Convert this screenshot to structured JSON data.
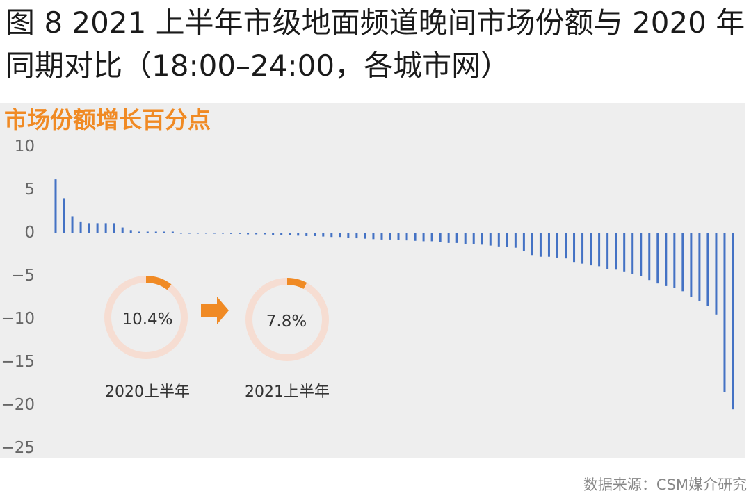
{
  "title": "图 8 2021 上半年市级地面频道晚间市场份额与 2020 年同期对比（18:00–24:00，各城市网）",
  "source": "数据来源：CSM媒介研究",
  "chart_data": {
    "type": "bar",
    "ylabel": "市场份额增长百分点",
    "ylim": [
      -25,
      10
    ],
    "yticks": [
      "10",
      "5",
      "0",
      "−5",
      "−10",
      "−15",
      "−20",
      "−25"
    ],
    "ytick_values": [
      10,
      5,
      0,
      -5,
      -10,
      -15,
      -20,
      -25
    ],
    "grid": false,
    "bar_color": "#4472c4",
    "values": [
      6.2,
      4.0,
      1.9,
      1.3,
      1.1,
      1.1,
      1.1,
      1.1,
      0.6,
      0.3,
      0.1,
      0.05,
      0.0,
      0.0,
      0.0,
      -0.05,
      -0.05,
      -0.05,
      -0.1,
      -0.1,
      -0.1,
      -0.15,
      -0.15,
      -0.2,
      -0.2,
      -0.2,
      -0.25,
      -0.3,
      -0.3,
      -0.35,
      -0.4,
      -0.4,
      -0.45,
      -0.5,
      -0.5,
      -0.6,
      -0.65,
      -0.7,
      -0.75,
      -0.8,
      -0.8,
      -0.85,
      -0.9,
      -0.95,
      -1.0,
      -1.0,
      -1.1,
      -1.2,
      -1.2,
      -1.3,
      -1.35,
      -1.4,
      -1.5,
      -1.6,
      -1.65,
      -1.75,
      -2.1,
      -2.6,
      -2.8,
      -2.8,
      -2.9,
      -3.0,
      -3.4,
      -3.6,
      -3.8,
      -3.9,
      -4.2,
      -4.3,
      -4.5,
      -4.8,
      -5.0,
      -5.5,
      -5.9,
      -6.2,
      -6.4,
      -6.8,
      -7.5,
      -7.9,
      -8.5,
      -9.5,
      -18.5,
      -20.5
    ]
  },
  "inset": {
    "arrow_color": "#f08a24",
    "rings": [
      {
        "value": 0.104,
        "value_label": "10.4%",
        "label": "2020上半年",
        "color": "#f08a24",
        "track_color": "#f6ddd2"
      },
      {
        "value": 0.078,
        "value_label": "7.8%",
        "label": "2021上半年",
        "color": "#f08a24",
        "track_color": "#f6ddd2"
      }
    ]
  }
}
